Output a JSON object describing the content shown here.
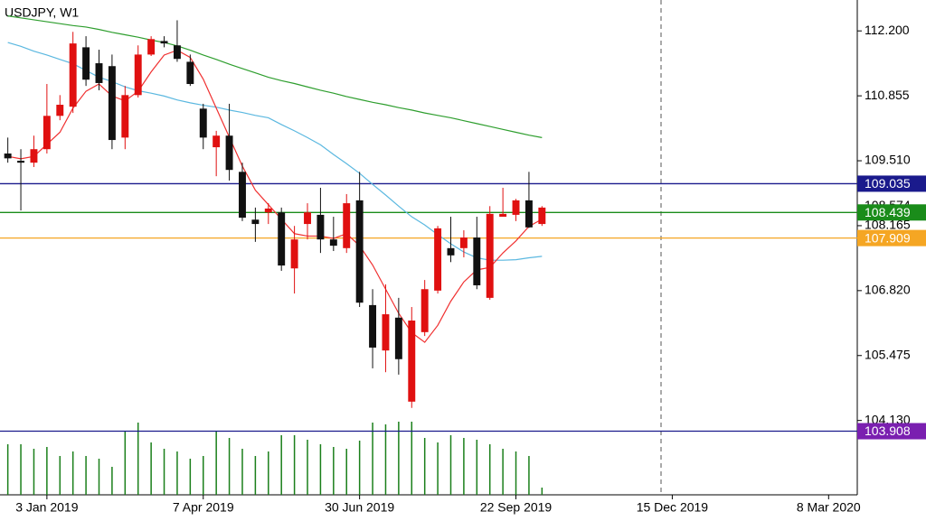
{
  "chart_data": {
    "type": "candlestick",
    "title": "USDJPY, W1",
    "xlim": [
      -0.6,
      65.2
    ],
    "xticks": [
      {
        "value": 3,
        "label": "3 Jan 2019"
      },
      {
        "value": 15,
        "label": "7 Apr 2019"
      },
      {
        "value": 27,
        "label": "30 Jun 2019"
      },
      {
        "value": 39,
        "label": "22 Sep 2019"
      },
      {
        "value": 51,
        "label": "15 Dec 2019"
      },
      {
        "value": 63,
        "label": "8 Mar 2020"
      }
    ],
    "ylim": [
      102.59,
      112.84
    ],
    "yticks": [
      {
        "value": 112.2,
        "label": "112.200"
      },
      {
        "value": 110.855,
        "label": "110.855"
      },
      {
        "value": 109.51,
        "label": "109.510"
      },
      108.574,
      108.165,
      {
        "value": 106.82,
        "label": "106.820"
      },
      105.475,
      {
        "value": 104.13,
        "label": "104.130"
      }
    ],
    "bull_color": "#e01010",
    "bear_color": "#111111",
    "ohlc": {
      "open": [
        109.66,
        109.51,
        109.47,
        109.75,
        110.44,
        110.63,
        111.86,
        111.53,
        111.47,
        109.99,
        110.87,
        111.71,
        111.99,
        111.9,
        111.56,
        110.59,
        109.79,
        110.03,
        109.28,
        108.29,
        108.44,
        108.44,
        107.28,
        108.2,
        108.39,
        107.88,
        107.7,
        108.69,
        106.52,
        105.58,
        106.26,
        104.52,
        105.96,
        106.82,
        107.7,
        107.7,
        107.92,
        106.67,
        108.35,
        108.39,
        108.69,
        108.2
      ],
      "high": [
        109.99,
        109.75,
        110.03,
        111.1,
        110.87,
        112.18,
        112.09,
        111.81,
        111.71,
        111.06,
        111.9,
        112.09,
        112.09,
        112.42,
        111.71,
        110.69,
        110.13,
        110.69,
        109.47,
        108.54,
        108.63,
        108.54,
        108.16,
        108.63,
        108.95,
        108.35,
        108.82,
        109.28,
        106.85,
        106.95,
        106.67,
        106.48,
        107.04,
        108.16,
        108.35,
        108.07,
        108.35,
        108.57,
        108.95,
        108.72,
        109.28,
        108.57
      ],
      "low": [
        109.47,
        108.48,
        109.38,
        109.66,
        110.35,
        110.5,
        111.06,
        110.97,
        109.75,
        109.75,
        110.82,
        111.68,
        111.86,
        111.56,
        111.06,
        109.75,
        109.19,
        109.1,
        108.26,
        107.83,
        108.2,
        107.23,
        106.76,
        107.88,
        107.6,
        107.64,
        107.6,
        106.48,
        105.21,
        105.13,
        105.08,
        104.39,
        105.88,
        106.76,
        107.41,
        107.51,
        106.85,
        106.63,
        108.35,
        108.26,
        108.12,
        108.16
      ],
      "close": [
        109.56,
        109.47,
        109.75,
        110.44,
        110.67,
        111.94,
        111.19,
        111.12,
        109.94,
        110.87,
        111.71,
        112.03,
        111.94,
        111.62,
        111.1,
        109.99,
        110.03,
        109.32,
        108.33,
        108.2,
        108.52,
        107.34,
        107.88,
        108.44,
        107.88,
        107.75,
        108.63,
        106.57,
        105.64,
        106.33,
        105.4,
        106.2,
        106.85,
        108.11,
        107.55,
        107.92,
        106.93,
        108.41,
        108.41,
        108.69,
        108.13,
        108.54
      ]
    },
    "moving_averages": [
      {
        "color": "#2e9e2e",
        "values": [
          112.51,
          112.47,
          112.43,
          112.39,
          112.35,
          112.31,
          112.28,
          112.23,
          112.17,
          112.12,
          112.07,
          112.01,
          111.96,
          111.89,
          111.8,
          111.7,
          111.61,
          111.51,
          111.42,
          111.33,
          111.24,
          111.17,
          111.11,
          111.04,
          110.97,
          110.91,
          110.84,
          110.78,
          110.72,
          110.67,
          110.61,
          110.56,
          110.5,
          110.45,
          110.4,
          110.34,
          110.28,
          110.22,
          110.16,
          110.1,
          110.04,
          109.99
        ]
      },
      {
        "color": "#5bb8e0",
        "values": [
          111.96,
          111.88,
          111.78,
          111.7,
          111.61,
          111.52,
          111.38,
          111.24,
          111.15,
          111.04,
          110.96,
          110.91,
          110.85,
          110.77,
          110.71,
          110.66,
          110.62,
          110.56,
          110.51,
          110.45,
          110.4,
          110.26,
          110.13,
          109.99,
          109.84,
          109.64,
          109.45,
          109.25,
          109.02,
          108.8,
          108.57,
          108.35,
          108.18,
          107.98,
          107.79,
          107.62,
          107.5,
          107.45,
          107.45,
          107.46,
          107.5,
          107.53
        ]
      },
      {
        "color": "#f03030",
        "values": [
          109.6,
          109.55,
          109.6,
          109.85,
          110.1,
          110.6,
          110.95,
          111.1,
          110.85,
          110.75,
          110.95,
          111.35,
          111.7,
          111.8,
          111.65,
          111.2,
          110.6,
          110.0,
          109.4,
          108.9,
          108.6,
          108.3,
          108.0,
          107.95,
          107.95,
          107.9,
          108.0,
          107.75,
          107.35,
          106.85,
          106.35,
          105.95,
          105.75,
          106.1,
          106.6,
          107.0,
          107.25,
          107.3,
          107.6,
          107.85,
          108.15,
          108.3
        ]
      }
    ],
    "levels": [
      {
        "value": 109.035,
        "color": "#1a1a8c",
        "label_color": "#1a1a8c"
      },
      {
        "value": 108.439,
        "color": "#1a8c1a",
        "label_color": "#1a8c1a"
      },
      {
        "value": 107.909,
        "color": "#f5a623",
        "label_color": "#f5a623"
      },
      {
        "value": 103.908,
        "color": "#1a1a8c",
        "label_color": "#7a1fb0"
      }
    ],
    "volume": {
      "color": "#1a7f1a",
      "ylim": [
        0,
        100
      ],
      "values": [
        56,
        56,
        51,
        53,
        43,
        48,
        43,
        40,
        31,
        70,
        80,
        58,
        51,
        48,
        40,
        43,
        70,
        63,
        51,
        43,
        48,
        66,
        66,
        61,
        56,
        53,
        51,
        60,
        80,
        78,
        81,
        81,
        63,
        58,
        66,
        63,
        61,
        56,
        51,
        48,
        43,
        8
      ]
    }
  }
}
